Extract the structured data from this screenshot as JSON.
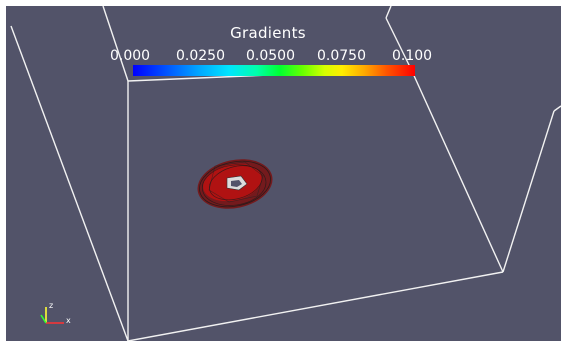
{
  "scalar_bar": {
    "title": "Gradients",
    "tick_labels": [
      "0.000",
      "0.0250",
      "0.0500",
      "0.0750",
      "0.100"
    ]
  },
  "orientation_axes": {
    "z_label": "z",
    "x_label": "x"
  },
  "colors": {
    "background": "#525369",
    "box_edges": "#ffffff",
    "isosurface": "#b01010",
    "colormap_low": "#0000ff",
    "colormap_high": "#ff0000"
  },
  "icons": [
    "orientation-axes-icon"
  ]
}
